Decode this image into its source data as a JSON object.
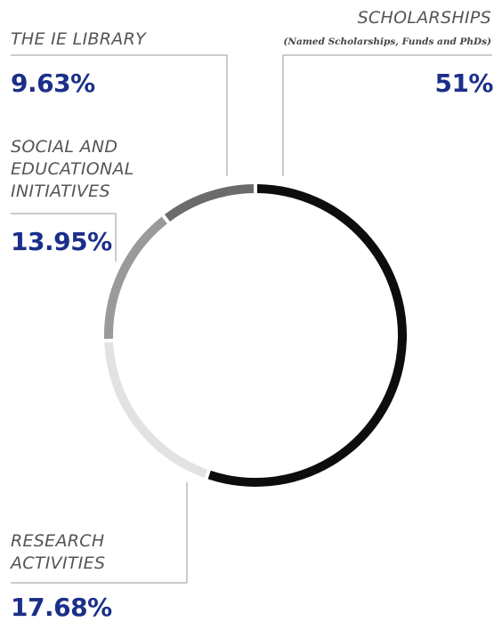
{
  "chart_data": {
    "type": "pie",
    "variant": "donut",
    "start": "top, clockwise",
    "slices": [
      {
        "label": "SCHOLARSHIPS",
        "sublabel": "(Named Scholarships, Funds and PhDs)",
        "value": 51,
        "display": "51%",
        "color": "#0d0d0d"
      },
      {
        "label": "RESEARCH\nACTIVITIES",
        "value": 17.68,
        "display": "17.68%",
        "color": "#e2e2e2"
      },
      {
        "label": "SOCIAL AND\nEDUCATIONAL\nINITIATIVES",
        "value": 13.95,
        "display": "13.95%",
        "color": "#9a9a9a"
      },
      {
        "label": "THE IE LIBRARY",
        "value": 9.63,
        "display": "9.63%",
        "color": "#6b6b6b"
      }
    ]
  }
}
